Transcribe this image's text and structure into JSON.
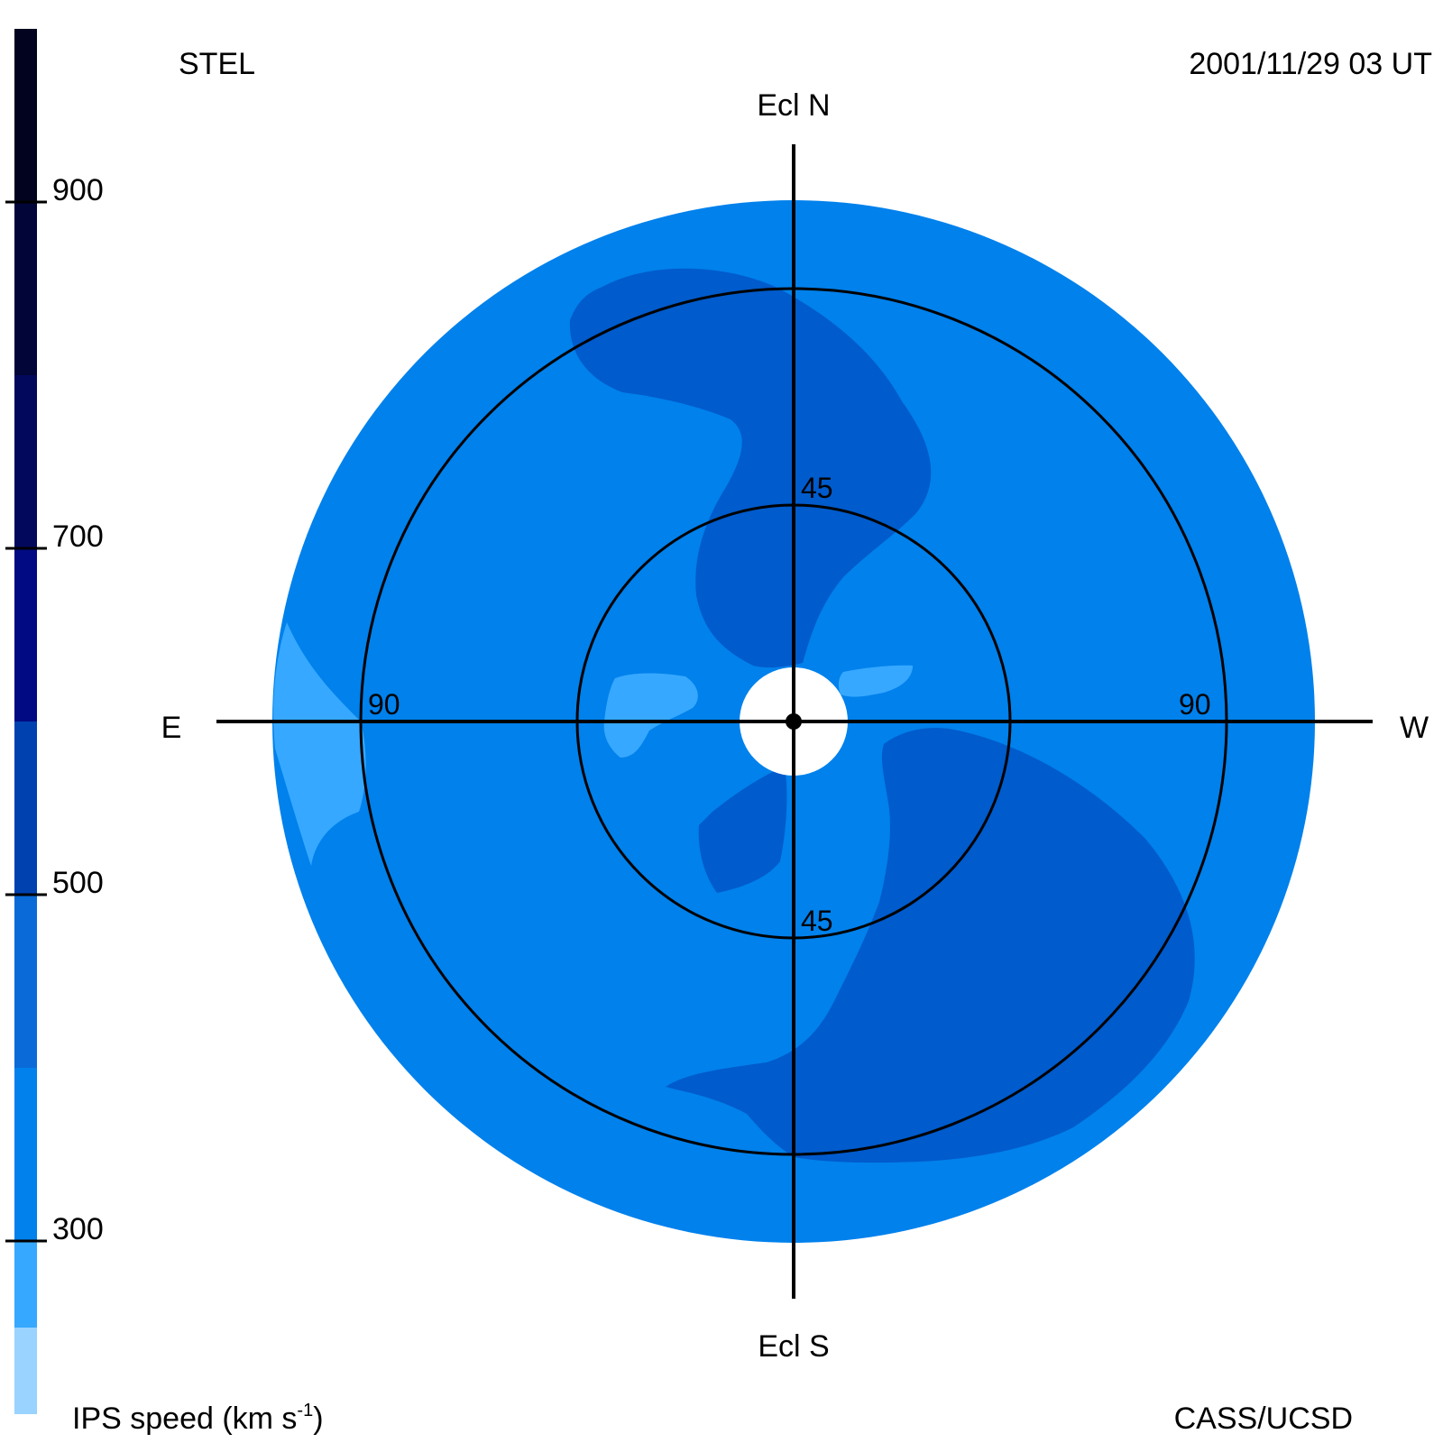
{
  "header": {
    "observatory": "STEL",
    "datetime": "2001/11/29 03 UT"
  },
  "footer": {
    "credit": "CASS/UCSD",
    "colorbar_label": "IPS speed (km s",
    "colorbar_label_exp": "-1",
    "colorbar_label_close": ")"
  },
  "directions": {
    "north": "Ecl N",
    "south": "Ecl S",
    "east": "E",
    "west": "W"
  },
  "colors": {
    "disk_base": "#0081ec",
    "disk_edge": "#0a86f0",
    "fast_region": "#005bcc",
    "slow_region": "#36a8ff",
    "occulted_center": "#ffffff",
    "lines": "#000000"
  },
  "chart_data": {
    "type": "heatmap",
    "projection": "sky-plane fisheye map, Sun at center",
    "quantity": "IPS speed",
    "units": "km s^-1",
    "elongation_rings_deg": [
      45,
      90
    ],
    "ring_labels": [
      "45",
      "45",
      "90",
      "90"
    ],
    "colorbar": {
      "ticks": [
        300,
        500,
        700,
        900
      ],
      "tick_labels": [
        "300",
        "500",
        "700",
        "900"
      ],
      "range": [
        200,
        1000
      ],
      "levels": [
        {
          "from": 200,
          "to": 250,
          "color": "#9ad3ff"
        },
        {
          "from": 250,
          "to": 300,
          "color": "#36a8ff"
        },
        {
          "from": 300,
          "to": 400,
          "color": "#0081ec"
        },
        {
          "from": 400,
          "to": 500,
          "color": "#0a6ad8"
        },
        {
          "from": 500,
          "to": 600,
          "color": "#0041b0"
        },
        {
          "from": 600,
          "to": 700,
          "color": "#010a82"
        },
        {
          "from": 700,
          "to": 800,
          "color": "#02095c"
        },
        {
          "from": 800,
          "to": 900,
          "color": "#010538"
        },
        {
          "from": 900,
          "to": 1000,
          "color": "#02031e"
        }
      ]
    },
    "regions": [
      {
        "name": "background flow",
        "speed_range": [
          300,
          400
        ]
      },
      {
        "name": "northern-arm fast stream",
        "speed_range": [
          400,
          500
        ]
      },
      {
        "name": "southwest fast stream",
        "speed_range": [
          400,
          500
        ]
      },
      {
        "name": "southern inner lobe",
        "speed_range": [
          400,
          500
        ]
      },
      {
        "name": "eastern limb slow flow",
        "speed_range": [
          250,
          300
        ]
      },
      {
        "name": "inner east slow patch",
        "speed_range": [
          250,
          300
        ]
      },
      {
        "name": "inner west slow patch",
        "speed_range": [
          250,
          300
        ]
      }
    ],
    "grid": true
  }
}
